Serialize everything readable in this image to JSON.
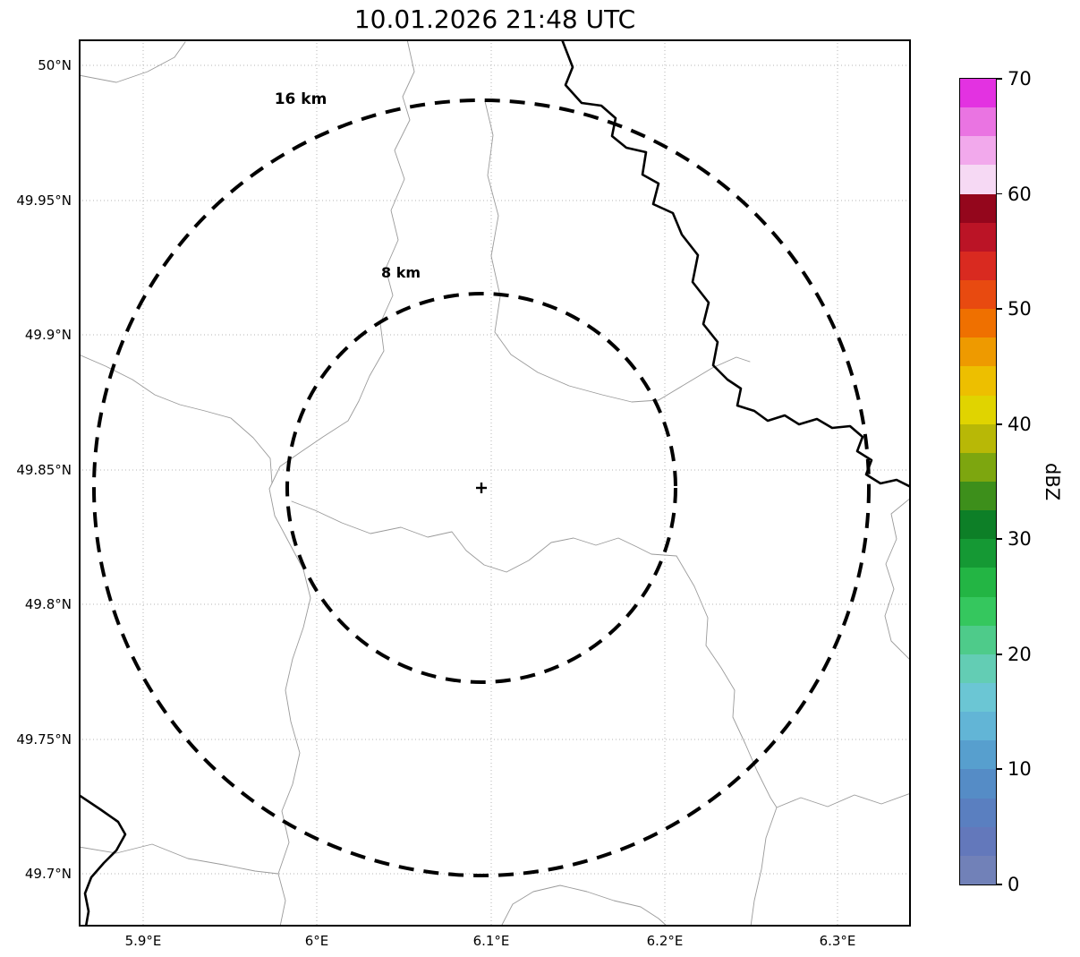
{
  "title": "10.01.2026 21:48 UTC",
  "axes": {
    "lat_ticks": [
      "50°N",
      "49.95°N",
      "49.9°N",
      "49.85°N",
      "49.8°N",
      "49.75°N",
      "49.7°N"
    ],
    "lon_ticks": [
      "5.9°E",
      "6°E",
      "6.1°E",
      "6.2°E",
      "6.3°E"
    ]
  },
  "rings": {
    "outer_label": "16 km",
    "inner_label": "8 km"
  },
  "colorbar": {
    "label": "dBZ",
    "min": 0,
    "max": 70,
    "tick_values": [
      0,
      10,
      20,
      30,
      40,
      50,
      60,
      70
    ],
    "colors_bottom_to_top": [
      "#7181b8",
      "#6378bb",
      "#5a7fc0",
      "#558cc6",
      "#579fce",
      "#62b5d6",
      "#6bc6d4",
      "#63cdb4",
      "#4ecb8a",
      "#35c75e",
      "#23b544",
      "#159934",
      "#0d7f27",
      "#3d8f1b",
      "#7da60f",
      "#b8b806",
      "#e0d400",
      "#edbf00",
      "#ee9a00",
      "#ef7000",
      "#e84a10",
      "#d92a20",
      "#bb1426",
      "#94061c",
      "#f6d9f4",
      "#f2a9ec",
      "#ea74e2",
      "#e332e1"
    ]
  },
  "chart_data": {
    "type": "map",
    "title": "10.01.2026 21:48 UTC",
    "lon_range": [
      5.86,
      6.34
    ],
    "lat_range": [
      49.68,
      50.01
    ],
    "lon_tick_values": [
      5.9,
      6.0,
      6.1,
      6.2,
      6.3
    ],
    "lat_tick_values": [
      50.0,
      49.95,
      49.9,
      49.85,
      49.8,
      49.75,
      49.7
    ],
    "radar_center": {
      "lon": 6.095,
      "lat": 49.843
    },
    "range_rings_km": [
      8,
      16
    ],
    "grid": "dotted",
    "colorbar": {
      "label": "dBZ",
      "range": [
        0,
        70
      ],
      "tick_step": 10,
      "position": "right"
    },
    "notes": "Radar reflectivity basemap with no echoes displayed; thin gray border lines, thick black river line from top toward the right edge and near the bottom-left corner, dashed 8 km and 16 km range rings around the radar site marked with a small cross."
  }
}
